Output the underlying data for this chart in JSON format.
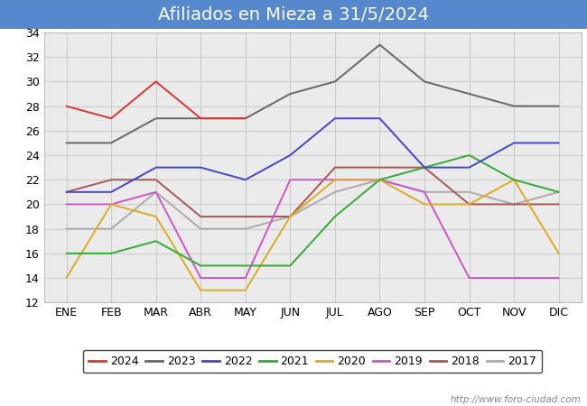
{
  "title": "Afiliados en Mieza a 31/5/2024",
  "title_bg_color": "#5588cc",
  "title_text_color": "#ffffff",
  "months": [
    "ENE",
    "FEB",
    "MAR",
    "ABR",
    "MAY",
    "JUN",
    "JUL",
    "AGO",
    "SEP",
    "OCT",
    "NOV",
    "DIC"
  ],
  "ylim": [
    12,
    34
  ],
  "yticks": [
    12,
    14,
    16,
    18,
    20,
    22,
    24,
    26,
    28,
    30,
    32,
    34
  ],
  "series": {
    "2024": {
      "color": "#dd3333",
      "data": [
        28,
        27,
        30,
        27,
        27,
        null,
        null,
        null,
        null,
        null,
        null,
        null
      ]
    },
    "2023": {
      "color": "#666666",
      "data": [
        25,
        25,
        27,
        27,
        27,
        29,
        30,
        33,
        30,
        29,
        28,
        28
      ]
    },
    "2022": {
      "color": "#4444cc",
      "data": [
        21,
        21,
        23,
        23,
        22,
        24,
        27,
        27,
        23,
        23,
        25,
        25
      ]
    },
    "2021": {
      "color": "#33aa33",
      "data": [
        16,
        16,
        17,
        15,
        15,
        15,
        19,
        22,
        23,
        24,
        22,
        21
      ]
    },
    "2020": {
      "color": "#ddaa22",
      "data": [
        14,
        20,
        19,
        13,
        13,
        19,
        22,
        22,
        20,
        20,
        22,
        16
      ]
    },
    "2019": {
      "color": "#cc55cc",
      "data": [
        20,
        20,
        21,
        14,
        14,
        22,
        22,
        22,
        21,
        14,
        14,
        14
      ]
    },
    "2018": {
      "color": "#aa5555",
      "data": [
        21,
        22,
        22,
        19,
        19,
        19,
        23,
        23,
        23,
        20,
        20,
        20
      ]
    },
    "2017": {
      "color": "#aaaaaa",
      "data": [
        18,
        18,
        21,
        18,
        18,
        19,
        21,
        22,
        21,
        21,
        20,
        21
      ]
    }
  },
  "watermark": "http://www.foro-ciudad.com",
  "grid_color": "#cccccc",
  "plot_bg_color": "#ebebeb",
  "fig_bg_color": "#ffffff",
  "title_fontsize": 14,
  "tick_fontsize": 9,
  "legend_fontsize": 9
}
